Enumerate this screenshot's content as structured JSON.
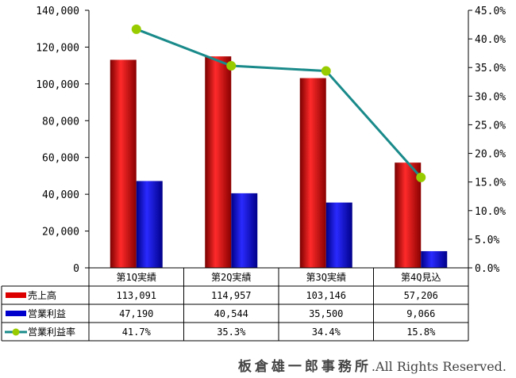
{
  "chart_data": {
    "type": "bar",
    "categories": [
      "第1Q実績",
      "第2Q実績",
      "第3Q実績",
      "第4Q見込"
    ],
    "series": [
      {
        "name": "売上高",
        "type": "bar",
        "axis": "left",
        "color": "#dd0000",
        "values": [
          113091,
          114957,
          103146,
          57206
        ]
      },
      {
        "name": "営業利益",
        "type": "bar",
        "axis": "left",
        "color": "#0000cc",
        "values": [
          47190,
          40544,
          35500,
          9066
        ]
      },
      {
        "name": "営業利益率",
        "type": "line",
        "axis": "right",
        "color": "#1a8a8a",
        "marker_color": "#99cc00",
        "values": [
          41.7,
          35.3,
          34.4,
          15.8
        ]
      }
    ],
    "table": {
      "rows": [
        {
          "label": "売上高",
          "cells": [
            "113,091",
            "114,957",
            "103,146",
            "57,206"
          ]
        },
        {
          "label": "営業利益",
          "cells": [
            "47,190",
            "40,544",
            "35,500",
            "9,066"
          ]
        },
        {
          "label": "営業利益率",
          "cells": [
            "41.7%",
            "35.3%",
            "34.4%",
            "15.8%"
          ]
        }
      ]
    },
    "y_left": {
      "ylim": [
        0,
        140000
      ],
      "ticks": [
        "0",
        "20,000",
        "40,000",
        "60,000",
        "80,000",
        "100,000",
        "120,000",
        "140,000"
      ]
    },
    "y_right": {
      "ylim": [
        0,
        45
      ],
      "ticks": [
        "0.0%",
        "5.0%",
        "10.0%",
        "15.0%",
        "20.0%",
        "25.0%",
        "30.0%",
        "35.0%",
        "40.0%",
        "45.0%"
      ]
    },
    "grid": false,
    "legend": "data-table"
  },
  "copyright": {
    "firm": "板倉雄一郎事務所",
    "suffix": ".All Rights Reserved."
  }
}
